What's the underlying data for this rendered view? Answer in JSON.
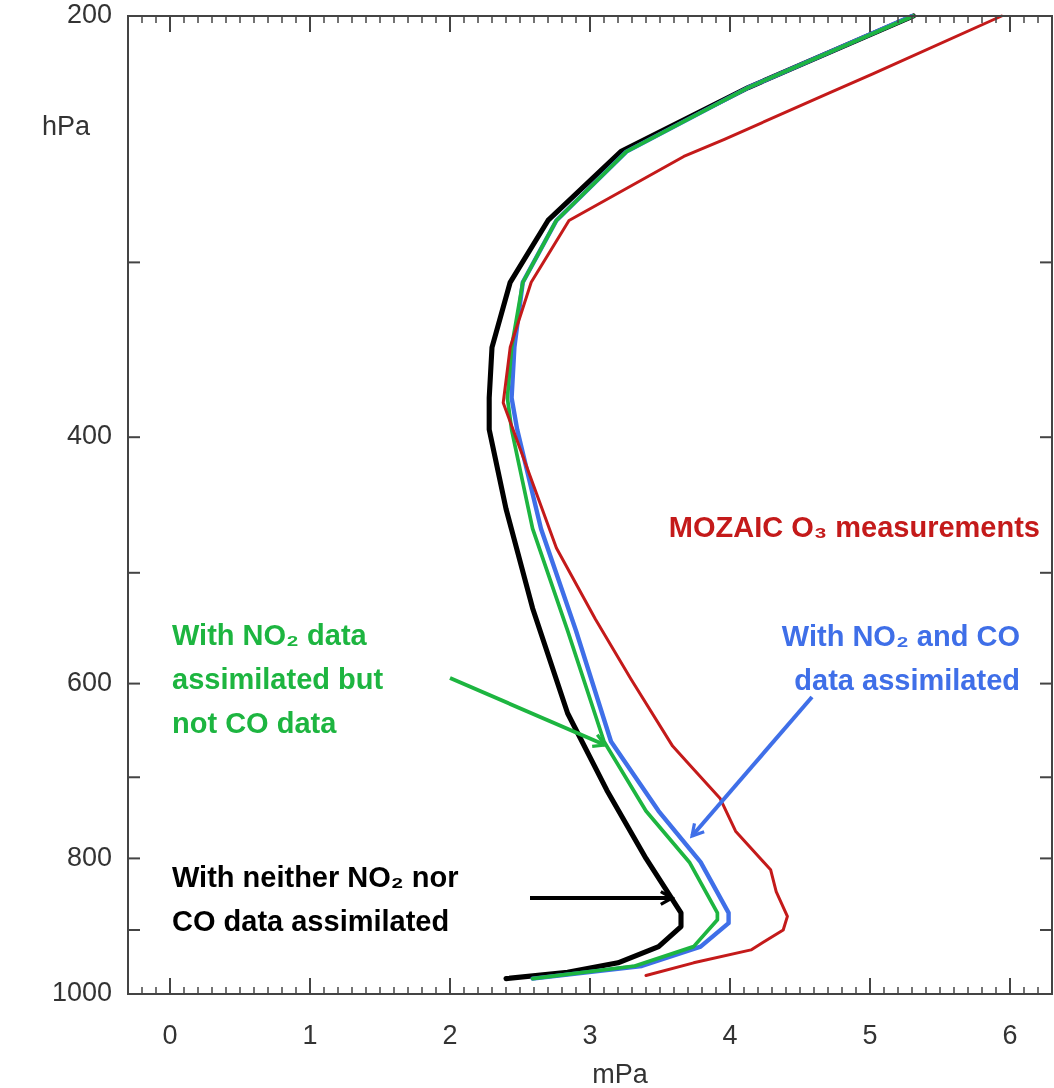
{
  "chart_data": {
    "type": "line",
    "xlabel": "mPa",
    "ylabel": "hPa",
    "log": "y",
    "xlim": [
      -0.3,
      6.3
    ],
    "ylim": [
      1000,
      200
    ],
    "xticks": [
      0,
      1,
      2,
      3,
      4,
      5,
      6
    ],
    "yticks": [
      200,
      {
        "value": 300,
        "label": null
      },
      400,
      {
        "value": 500,
        "label": null
      },
      600,
      {
        "value": 700,
        "label": null
      },
      800,
      {
        "value": 900,
        "label": null
      },
      1000
    ],
    "series": [
      {
        "name": "With neither NO₂ nor CO data assimilated",
        "color": "#000000",
        "x": [
          5.31,
          4.13,
          3.22,
          2.7,
          2.43,
          2.3,
          2.28,
          2.28,
          2.4,
          2.59,
          2.84,
          3.12,
          3.4,
          3.65,
          3.65,
          3.49,
          3.2,
          2.84,
          2.4
        ],
        "values": [
          200,
          225,
          250,
          280,
          310,
          345,
          375,
          395,
          450,
          530,
          630,
          715,
          800,
          875,
          895,
          925,
          950,
          965,
          975
        ]
      },
      {
        "name": "With NO₂ and CO data assimilated",
        "color": "#3f6fe8",
        "x": [
          5.3,
          4.13,
          3.26,
          2.76,
          2.52,
          2.46,
          2.44,
          2.48,
          2.65,
          2.9,
          3.15,
          3.49,
          3.79,
          3.99,
          3.99,
          3.79,
          3.37,
          2.59
        ],
        "values": [
          200,
          225,
          250,
          280,
          310,
          345,
          375,
          395,
          465,
          550,
          660,
          740,
          805,
          875,
          890,
          925,
          955,
          975
        ]
      },
      {
        "name": "With NO₂ data assimilated but not CO data",
        "color": "#1db540",
        "x": [
          5.31,
          4.13,
          3.26,
          2.76,
          2.52,
          2.44,
          2.41,
          2.44,
          2.59,
          2.84,
          3.1,
          3.4,
          3.71,
          3.91,
          3.91,
          3.74,
          3.32,
          2.59
        ],
        "values": [
          200,
          225,
          250,
          280,
          310,
          345,
          375,
          395,
          465,
          550,
          660,
          740,
          805,
          875,
          885,
          925,
          955,
          975
        ]
      },
      {
        "name": "MOZAIC O₃ measurements",
        "color": "#c41a1a",
        "x": [
          5.94,
          5.02,
          4.71,
          3.96,
          3.67,
          2.85,
          2.58,
          2.43,
          2.38,
          2.51,
          2.76,
          3.04,
          3.29,
          3.59,
          3.93,
          4.04,
          4.29,
          4.33,
          4.41,
          4.38,
          4.15,
          3.74,
          3.4
        ],
        "values": [
          200,
          220,
          227,
          245,
          252,
          280,
          310,
          345,
          378,
          410,
          480,
          540,
          595,
          665,
          725,
          765,
          815,
          845,
          880,
          900,
          930,
          950,
          970
        ]
      }
    ]
  }
}
